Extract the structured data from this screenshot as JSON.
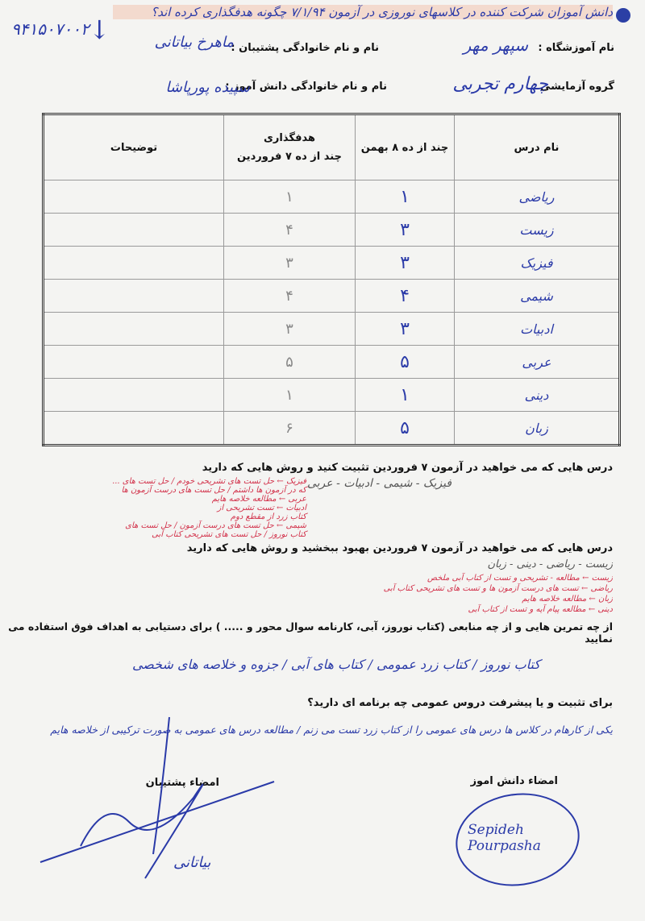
{
  "header": {
    "note": "دانش آموزان شرکت کننده در کلاسهای نوروزی در آزمون ۷/۱/۹۴ چگونه هدفگذاری کرده اند؟",
    "student_id": "۹۴۱۵۰۷۰۰۲",
    "highlight_color": "#f0aa8c",
    "fields": {
      "school_label": "نام آموزشگاه :",
      "school_value": "سپهر مهر",
      "supporter_label": "نام و نام خانوادگی پشتیبان :",
      "supporter_value": "ماهرخ بیاتانی",
      "group_label": "گروه آزمایشی :",
      "group_value": "چهارم تجربی",
      "student_label": "نام و نام خانوادگی دانش آموز :",
      "student_value": "سپیده پورپاشا"
    }
  },
  "table": {
    "headers": [
      "نام درس",
      "چند از ده ۸ بهمن",
      "هدفگذاری",
      "چند از ده ۷ فروردین",
      "توضیحات"
    ],
    "rows": [
      {
        "subject": "ریاضی",
        "bahman": "۱",
        "target": "۱",
        "notes": ""
      },
      {
        "subject": "زیست",
        "bahman": "۳",
        "target": "۴",
        "notes": ""
      },
      {
        "subject": "فیزیک",
        "bahman": "۳",
        "target": "۳",
        "notes": ""
      },
      {
        "subject": "شیمی",
        "bahman": "۴",
        "target": "۴",
        "notes": ""
      },
      {
        "subject": "ادبیات",
        "bahman": "۳",
        "target": "۳",
        "notes": ""
      },
      {
        "subject": "عربی",
        "bahman": "۵",
        "target": "۵",
        "notes": ""
      },
      {
        "subject": "دینی",
        "bahman": "۱",
        "target": "۱",
        "notes": ""
      },
      {
        "subject": "زبان",
        "bahman": "۵",
        "target": "۶",
        "notes": ""
      }
    ]
  },
  "questions": {
    "q1": "درس هایی که می خواهید در آزمون ۷ فروردین تثبیت کنید و روش هایی که دارید",
    "q1_answer": "فیزیک - شیمی - ادبیات - عربی",
    "q1_methods": [
      "فیزیک ← حل تست های تشریحی خودم / حل تست های ...",
      "که در آزمون ها داشتم / حل تست های درست آزمون ها",
      "عربی ← مطالعه خلاصه هایم",
      "ادبیات ← تست تشریحی از",
      "کتاب زرد از مقطع دوم",
      "شیمی ← حل تست های درست آزمون / حل تست های",
      "کتاب نوروز / حل تست های تشریحی کتاب آبی"
    ],
    "q2": "درس هایی که می خواهید در آزمون ۷ فروردین بهبود ببخشید و روش هایی که دارید",
    "q2_answer": "زیست - ریاضی - دینی - زبان",
    "q2_methods": [
      "زیست ← مطالعه - تشریحی و تست از کتاب آبی ملخص",
      "ریاضی ← تست های درست آزمون ها و تست های تشریحی کتاب آبی",
      "زبان ← مطالعه خلاصه هایم",
      "دینی ← مطالعه پیام آیه و تست از کتاب آبی"
    ],
    "q3": "از چه تمرین هایی و از چه منابعی (کتاب نوروز، آبی، کارنامه سوال محور و ..... ) برای دستیابی به اهداف فوق استفاده می نمایید",
    "q3_answer": "کتاب نوروز / کتاب زرد عمومی / کتاب های آبی / جزوه و خلاصه های شخصی",
    "q4": "برای تثبیت و یا پیشرفت دروس عمومی چه برنامه ای دارید؟",
    "q4_answer": "یکی از کارهام در کلاس ها درس های عمومی را از کتاب زرد تست می زنم / مطالعه درس های عمومی به صورت ترکیبی از خلاصه هایم"
  },
  "signatures": {
    "student_label": "امضاء دانش اموز",
    "supporter_label": "امضاء پشتیبان",
    "student_signature": "Sepideh Pourpasha",
    "supporter_signature": "بیاتانی"
  }
}
